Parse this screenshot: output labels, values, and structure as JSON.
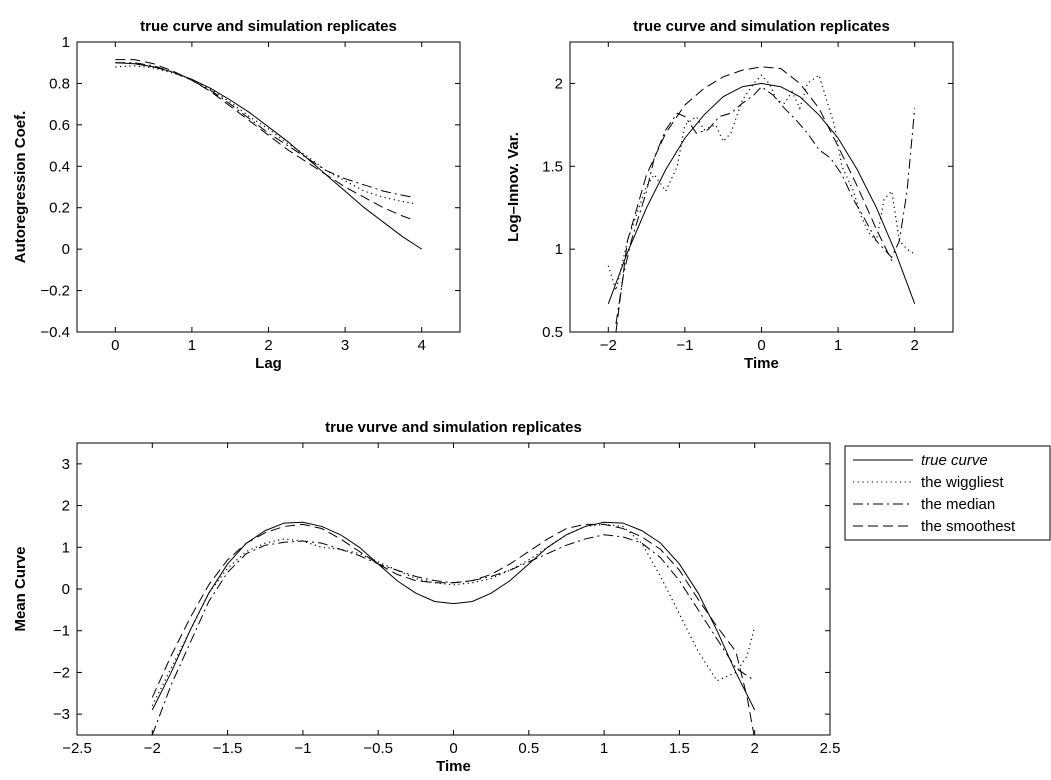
{
  "chart_data": [
    {
      "type": "line",
      "title": "true curve and simulation replicates",
      "xlabel": "Lag",
      "ylabel": "Autoregression Coef.",
      "xlim": [
        -0.5,
        4.5
      ],
      "ylim": [
        -0.4,
        1
      ],
      "xticks": [
        0,
        1,
        2,
        3,
        4
      ],
      "yticks": [
        -0.4,
        -0.2,
        0,
        0.2,
        0.4,
        0.6,
        0.8,
        1
      ],
      "grid": false,
      "series": [
        {
          "name": "true curve",
          "style": "solid",
          "x": [
            0,
            0.25,
            0.5,
            0.75,
            1,
            1.25,
            1.5,
            1.75,
            2,
            2.25,
            2.5,
            2.75,
            3,
            3.25,
            3.5,
            3.75,
            4
          ],
          "y": [
            0.9,
            0.895,
            0.88,
            0.855,
            0.82,
            0.775,
            0.72,
            0.66,
            0.59,
            0.52,
            0.44,
            0.36,
            0.28,
            0.2,
            0.13,
            0.06,
            0.0
          ]
        },
        {
          "name": "the wiggliest",
          "style": "dotted",
          "x": [
            0,
            0.25,
            0.5,
            0.75,
            1,
            1.25,
            1.5,
            1.75,
            2,
            2.25,
            2.5,
            2.75,
            3,
            3.25,
            3.5,
            3.75,
            3.9
          ],
          "y": [
            0.88,
            0.885,
            0.875,
            0.85,
            0.82,
            0.77,
            0.71,
            0.64,
            0.58,
            0.51,
            0.45,
            0.38,
            0.33,
            0.28,
            0.25,
            0.23,
            0.22
          ]
        },
        {
          "name": "the median",
          "style": "dashdot",
          "x": [
            0,
            0.25,
            0.5,
            0.75,
            1,
            1.25,
            1.5,
            1.75,
            2,
            2.25,
            2.5,
            2.75,
            3,
            3.25,
            3.5,
            3.75,
            3.9
          ],
          "y": [
            0.9,
            0.9,
            0.885,
            0.855,
            0.815,
            0.765,
            0.7,
            0.63,
            0.56,
            0.5,
            0.44,
            0.38,
            0.34,
            0.31,
            0.28,
            0.26,
            0.25
          ]
        },
        {
          "name": "the smoothest",
          "style": "dashed",
          "x": [
            0,
            0.25,
            0.5,
            0.75,
            1,
            1.25,
            1.5,
            1.75,
            2,
            2.25,
            2.5,
            2.75,
            3,
            3.25,
            3.5,
            3.75,
            3.9
          ],
          "y": [
            0.915,
            0.915,
            0.895,
            0.86,
            0.815,
            0.76,
            0.69,
            0.62,
            0.55,
            0.48,
            0.42,
            0.36,
            0.3,
            0.25,
            0.2,
            0.16,
            0.14
          ]
        }
      ]
    },
    {
      "type": "line",
      "title": "true curve and simulation replicates",
      "xlabel": "Time",
      "ylabel": "Log–Innov. Var.",
      "xlim": [
        -2.5,
        2.5
      ],
      "ylim": [
        0.5,
        2.25
      ],
      "xticks": [
        -2,
        -1,
        0,
        1,
        2
      ],
      "yticks": [
        0.5,
        1,
        1.5,
        2
      ],
      "grid": false,
      "series": [
        {
          "name": "true curve",
          "style": "solid",
          "x": [
            -2,
            -1.75,
            -1.5,
            -1.25,
            -1,
            -0.75,
            -0.5,
            -0.25,
            0,
            0.25,
            0.5,
            0.75,
            1,
            1.25,
            1.5,
            1.75,
            2
          ],
          "y": [
            0.67,
            0.98,
            1.25,
            1.48,
            1.67,
            1.81,
            1.92,
            1.98,
            2.0,
            1.98,
            1.92,
            1.81,
            1.67,
            1.48,
            1.25,
            0.98,
            0.67
          ]
        },
        {
          "name": "the wiggliest",
          "style": "dotted",
          "x": [
            -2,
            -1.9,
            -1.75,
            -1.6,
            -1.5,
            -1.4,
            -1.25,
            -1.1,
            -1,
            -0.85,
            -0.75,
            -0.6,
            -0.5,
            -0.4,
            -0.25,
            -0.1,
            0,
            0.1,
            0.2,
            0.3,
            0.4,
            0.5,
            0.6,
            0.75,
            0.85,
            0.95,
            1.05,
            1.2,
            1.3,
            1.4,
            1.5,
            1.6,
            1.7,
            1.8,
            1.9,
            2
          ],
          "y": [
            0.9,
            0.75,
            1.05,
            1.25,
            1.38,
            1.45,
            1.35,
            1.5,
            1.75,
            1.8,
            1.72,
            1.75,
            1.65,
            1.7,
            1.9,
            2.0,
            2.05,
            2.0,
            1.9,
            1.88,
            1.95,
            1.85,
            2.0,
            2.05,
            1.9,
            1.75,
            1.5,
            1.35,
            1.2,
            1.1,
            1.05,
            1.3,
            1.35,
            1.05,
            1.0,
            0.97
          ]
        },
        {
          "name": "the median",
          "style": "dashdot",
          "x": [
            -1.9,
            -1.8,
            -1.7,
            -1.6,
            -1.5,
            -1.4,
            -1.25,
            -1.1,
            -1,
            -0.85,
            -0.7,
            -0.55,
            -0.4,
            -0.25,
            -0.1,
            0,
            0.15,
            0.3,
            0.45,
            0.6,
            0.75,
            0.9,
            1.05,
            1.2,
            1.35,
            1.5,
            1.6,
            1.7,
            1.8,
            1.9,
            2
          ],
          "y": [
            0.55,
            0.85,
            1.05,
            1.2,
            1.35,
            1.55,
            1.72,
            1.82,
            1.8,
            1.7,
            1.72,
            1.8,
            1.82,
            1.88,
            1.93,
            1.98,
            1.93,
            1.85,
            1.78,
            1.7,
            1.6,
            1.55,
            1.45,
            1.3,
            1.18,
            1.05,
            1.0,
            0.95,
            1.05,
            1.35,
            1.85
          ]
        },
        {
          "name": "the smoothest",
          "style": "dashed",
          "x": [
            -1.9,
            -1.75,
            -1.5,
            -1.25,
            -1,
            -0.75,
            -0.5,
            -0.25,
            0,
            0.25,
            0.5,
            0.75,
            1,
            1.25,
            1.5,
            1.7
          ],
          "y": [
            0.5,
            1.05,
            1.45,
            1.7,
            1.87,
            1.97,
            2.04,
            2.08,
            2.1,
            2.09,
            2.0,
            1.85,
            1.62,
            1.38,
            1.12,
            0.93
          ]
        }
      ]
    },
    {
      "type": "line",
      "title": "true vurve and simulation replicates",
      "xlabel": "Time",
      "ylabel": "Mean Curve",
      "xlim": [
        -2.5,
        2.5
      ],
      "ylim": [
        -3.5,
        3.5
      ],
      "xticks": [
        -2.5,
        -2,
        -1.5,
        -1,
        -0.5,
        0,
        0.5,
        1,
        1.5,
        2,
        2.5
      ],
      "yticks": [
        -3,
        -2,
        -1,
        0,
        1,
        2,
        3
      ],
      "grid": false,
      "legend": {
        "placement": "outside-right",
        "entries": [
          {
            "label": "true curve",
            "style": "solid",
            "italic": true
          },
          {
            "label": "the wiggliest",
            "style": "dotted",
            "italic": false
          },
          {
            "label": "the median",
            "style": "dashdot",
            "italic": false
          },
          {
            "label": "the smoothest",
            "style": "dashed",
            "italic": false
          }
        ]
      },
      "series": [
        {
          "name": "true curve",
          "style": "solid",
          "x": [
            -2,
            -1.875,
            -1.75,
            -1.625,
            -1.5,
            -1.375,
            -1.25,
            -1.125,
            -1,
            -0.875,
            -0.75,
            -0.625,
            -0.5,
            -0.375,
            -0.25,
            -0.125,
            0,
            0.125,
            0.25,
            0.375,
            0.5,
            0.625,
            0.75,
            0.875,
            1,
            1.125,
            1.25,
            1.375,
            1.5,
            1.625,
            1.75,
            1.875,
            2
          ],
          "y": [
            -2.9,
            -2.0,
            -1.0,
            -0.1,
            0.6,
            1.1,
            1.4,
            1.58,
            1.6,
            1.5,
            1.3,
            1.0,
            0.6,
            0.2,
            -0.1,
            -0.3,
            -0.35,
            -0.3,
            -0.1,
            0.2,
            0.6,
            1.0,
            1.3,
            1.5,
            1.6,
            1.58,
            1.4,
            1.1,
            0.6,
            -0.1,
            -1.0,
            -2.0,
            -2.9
          ]
        },
        {
          "name": "the wiggliest",
          "style": "dotted",
          "x": [
            -2,
            -1.875,
            -1.75,
            -1.625,
            -1.5,
            -1.375,
            -1.25,
            -1.125,
            -1,
            -0.875,
            -0.75,
            -0.625,
            -0.5,
            -0.375,
            -0.25,
            -0.125,
            0,
            0.125,
            0.25,
            0.375,
            0.5,
            0.625,
            0.75,
            0.875,
            1,
            1.125,
            1.25,
            1.375,
            1.5,
            1.625,
            1.75,
            1.875,
            1.95,
            2
          ],
          "y": [
            -2.8,
            -1.9,
            -1.0,
            -0.1,
            0.5,
            0.9,
            1.1,
            1.2,
            1.15,
            1.0,
            0.95,
            0.85,
            0.65,
            0.45,
            0.25,
            0.15,
            0.1,
            0.15,
            0.25,
            0.45,
            0.7,
            1.0,
            1.3,
            1.5,
            1.55,
            1.5,
            1.1,
            0.3,
            -0.6,
            -1.5,
            -2.2,
            -2.0,
            -1.6,
            -0.9
          ]
        },
        {
          "name": "the median",
          "style": "dashdot",
          "x": [
            -2,
            -1.875,
            -1.75,
            -1.625,
            -1.5,
            -1.375,
            -1.25,
            -1.125,
            -1,
            -0.875,
            -0.75,
            -0.625,
            -0.5,
            -0.375,
            -0.25,
            -0.125,
            0,
            0.125,
            0.25,
            0.375,
            0.5,
            0.625,
            0.75,
            0.875,
            1,
            1.125,
            1.25,
            1.375,
            1.5,
            1.625,
            1.75,
            1.875,
            2
          ],
          "y": [
            -3.5,
            -2.3,
            -1.3,
            -0.3,
            0.4,
            0.85,
            1.05,
            1.12,
            1.15,
            1.1,
            0.95,
            0.8,
            0.6,
            0.45,
            0.3,
            0.2,
            0.15,
            0.2,
            0.3,
            0.45,
            0.65,
            0.85,
            1.05,
            1.2,
            1.3,
            1.25,
            1.1,
            0.75,
            0.2,
            -0.5,
            -1.2,
            -1.9,
            -2.2
          ]
        },
        {
          "name": "the smoothest",
          "style": "dashed",
          "x": [
            -2,
            -1.875,
            -1.75,
            -1.625,
            -1.5,
            -1.375,
            -1.25,
            -1.125,
            -1,
            -0.875,
            -0.75,
            -0.625,
            -0.5,
            -0.375,
            -0.25,
            -0.125,
            0,
            0.125,
            0.25,
            0.375,
            0.5,
            0.625,
            0.75,
            0.875,
            1,
            1.125,
            1.25,
            1.375,
            1.5,
            1.625,
            1.75,
            1.875,
            1.95,
            2
          ],
          "y": [
            -2.6,
            -1.6,
            -0.7,
            0.1,
            0.7,
            1.1,
            1.35,
            1.5,
            1.55,
            1.45,
            1.2,
            0.9,
            0.6,
            0.35,
            0.2,
            0.15,
            0.15,
            0.2,
            0.35,
            0.6,
            0.9,
            1.2,
            1.45,
            1.55,
            1.55,
            1.45,
            1.25,
            0.95,
            0.45,
            -0.25,
            -0.9,
            -1.5,
            -2.6,
            -3.6
          ]
        }
      ]
    }
  ]
}
